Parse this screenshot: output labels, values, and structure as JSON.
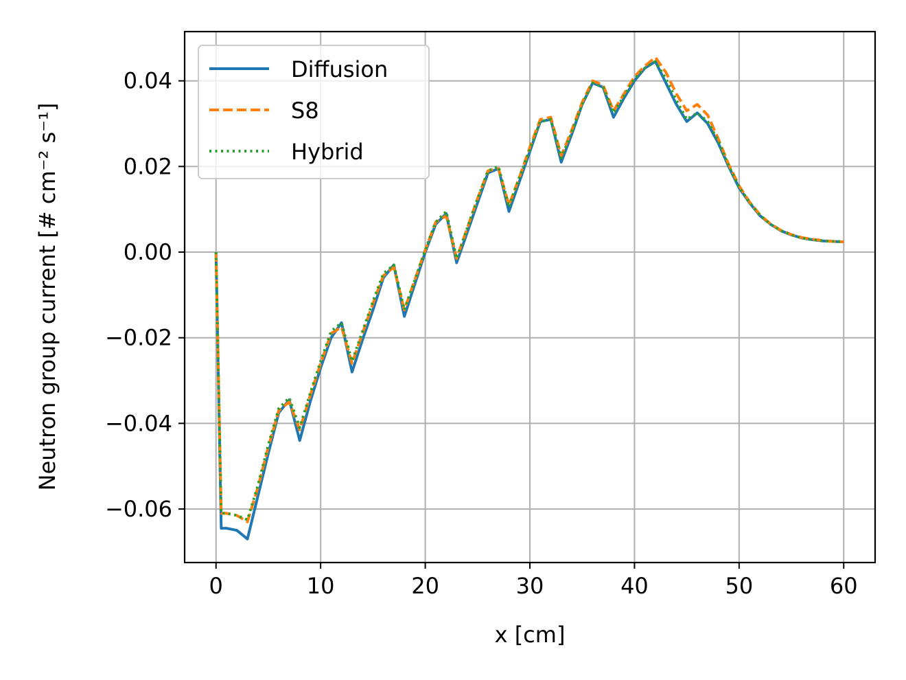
{
  "chart_data": {
    "type": "line",
    "xlabel": "x [cm]",
    "ylabel": "Neutron group current [# cm⁻² s⁻¹]",
    "xlim": [
      -3,
      63
    ],
    "ylim": [
      -0.0725,
      0.0515
    ],
    "xticks": [
      0,
      10,
      20,
      30,
      40,
      50,
      60
    ],
    "yticks": [
      -0.06,
      -0.04,
      -0.02,
      0.0,
      0.02,
      0.04
    ],
    "xtick_labels": [
      "0",
      "10",
      "20",
      "30",
      "40",
      "50",
      "60"
    ],
    "ytick_labels": [
      "−0.06",
      "−0.04",
      "−0.02",
      "0.00",
      "0.02",
      "0.04"
    ],
    "grid": true,
    "legend_position": "upper-left",
    "series": [
      {
        "name": "Diffusion",
        "color": "#1f77b4",
        "style": "solid",
        "x": [
          0,
          0.5,
          1,
          2,
          3,
          4,
          5,
          6,
          7,
          8,
          9,
          10,
          11,
          12,
          13,
          14,
          15,
          16,
          17,
          18,
          19,
          20,
          21,
          22,
          23,
          24,
          25,
          26,
          27,
          28,
          29,
          30,
          31,
          32,
          33,
          34,
          35,
          36,
          37,
          38,
          39,
          40,
          41,
          42,
          43,
          44,
          45,
          46,
          47,
          48,
          49,
          50,
          51,
          52,
          53,
          54,
          55,
          56,
          57,
          58,
          59,
          60
        ],
        "y": [
          0.0,
          -0.0645,
          -0.0645,
          -0.065,
          -0.067,
          -0.057,
          -0.047,
          -0.0375,
          -0.0345,
          -0.044,
          -0.035,
          -0.027,
          -0.02,
          -0.0165,
          -0.028,
          -0.0205,
          -0.0135,
          -0.006,
          -0.003,
          -0.015,
          -0.0075,
          0.0,
          0.0065,
          0.009,
          -0.0025,
          0.0045,
          0.0115,
          0.0185,
          0.0195,
          0.0095,
          0.0165,
          0.0235,
          0.0305,
          0.031,
          0.021,
          0.0275,
          0.0345,
          0.0395,
          0.0385,
          0.0315,
          0.036,
          0.04,
          0.043,
          0.0445,
          0.0395,
          0.0345,
          0.0305,
          0.0325,
          0.03,
          0.0255,
          0.02,
          0.015,
          0.0115,
          0.0085,
          0.0065,
          0.005,
          0.004,
          0.0033,
          0.0029,
          0.0026,
          0.0025,
          0.0024
        ]
      },
      {
        "name": "S8",
        "color": "#ff7f0e",
        "style": "dashed",
        "x": [
          0,
          0.5,
          1,
          2,
          3,
          4,
          5,
          6,
          7,
          8,
          9,
          10,
          11,
          12,
          13,
          14,
          15,
          16,
          17,
          18,
          19,
          20,
          21,
          22,
          23,
          24,
          25,
          26,
          27,
          28,
          29,
          30,
          31,
          32,
          33,
          34,
          35,
          36,
          37,
          38,
          39,
          40,
          41,
          42,
          43,
          44,
          45,
          46,
          47,
          48,
          49,
          50,
          51,
          52,
          53,
          54,
          55,
          56,
          57,
          58,
          59,
          60
        ],
        "y": [
          0.0,
          -0.061,
          -0.061,
          -0.0615,
          -0.063,
          -0.055,
          -0.0455,
          -0.037,
          -0.035,
          -0.0415,
          -0.0335,
          -0.026,
          -0.019,
          -0.0175,
          -0.026,
          -0.019,
          -0.012,
          -0.0055,
          -0.0035,
          -0.0135,
          -0.0065,
          0.0005,
          0.007,
          0.0085,
          -0.0015,
          0.0055,
          0.0125,
          0.019,
          0.0195,
          0.011,
          0.0175,
          0.0245,
          0.031,
          0.0315,
          0.0225,
          0.0285,
          0.035,
          0.04,
          0.039,
          0.033,
          0.037,
          0.041,
          0.0435,
          0.0455,
          0.042,
          0.037,
          0.033,
          0.0345,
          0.032,
          0.0265,
          0.0205,
          0.0155,
          0.0117,
          0.0087,
          0.0066,
          0.0051,
          0.0041,
          0.0034,
          0.003,
          0.0027,
          0.0025,
          0.0024
        ]
      },
      {
        "name": "Hybrid",
        "color": "#2ca02c",
        "style": "dotted",
        "x": [
          0,
          0.5,
          1,
          2,
          3,
          4,
          5,
          6,
          7,
          8,
          9,
          10,
          11,
          12,
          13,
          14,
          15,
          16,
          17,
          18,
          19,
          20,
          21,
          22,
          23,
          24,
          25,
          26,
          27,
          28,
          29,
          30,
          31,
          32,
          33,
          34,
          35,
          36,
          37,
          38,
          39,
          40,
          41,
          42,
          43,
          44,
          45,
          46,
          47,
          48,
          49,
          50,
          51,
          52,
          53,
          54,
          55,
          56,
          57,
          58,
          59,
          60
        ],
        "y": [
          0.0,
          -0.061,
          -0.061,
          -0.0615,
          -0.0625,
          -0.0545,
          -0.045,
          -0.0365,
          -0.034,
          -0.041,
          -0.033,
          -0.0255,
          -0.0185,
          -0.0165,
          -0.0255,
          -0.0185,
          -0.0115,
          -0.005,
          -0.003,
          -0.0135,
          -0.0065,
          0.0005,
          0.007,
          0.0095,
          -0.0015,
          0.0055,
          0.0125,
          0.019,
          0.02,
          0.0105,
          0.0175,
          0.024,
          0.0305,
          0.031,
          0.022,
          0.028,
          0.0345,
          0.0395,
          0.0385,
          0.0325,
          0.0365,
          0.0405,
          0.043,
          0.0445,
          0.0405,
          0.0355,
          0.031,
          0.0325,
          0.0305,
          0.026,
          0.0202,
          0.0152,
          0.0116,
          0.0086,
          0.0065,
          0.005,
          0.004,
          0.0033,
          0.0029,
          0.0026,
          0.0025,
          0.0024
        ]
      }
    ]
  }
}
